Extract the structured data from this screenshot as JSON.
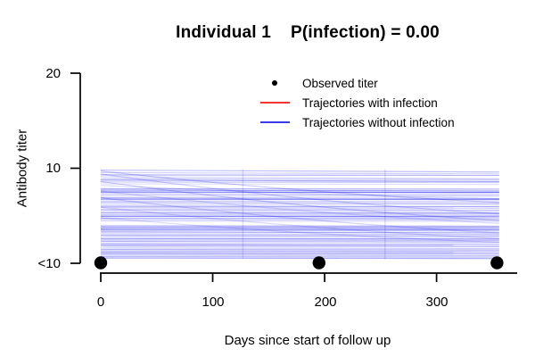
{
  "title": "Individual 1    P(infection) = 0.00",
  "legend": {
    "items": [
      {
        "label": "Observed titer",
        "marker": "point",
        "color": "#000000"
      },
      {
        "label": "Trajectories with infection",
        "marker": "line",
        "color": "#F8342E"
      },
      {
        "label": "Trajectories without infection",
        "marker": "line",
        "color": "#3A3AE8"
      }
    ]
  },
  "chart_data": {
    "type": "line",
    "title": "Individual 1    P(infection) = 0.00",
    "individual": 1,
    "p_infection": "0.00",
    "xlabel": "Days since start of follow up",
    "ylabel": "Antibody titer",
    "x_ticks": [
      {
        "value": 0,
        "label": "0"
      },
      {
        "value": 100,
        "label": "100"
      },
      {
        "value": 200,
        "label": "200"
      },
      {
        "value": 300,
        "label": "300"
      }
    ],
    "y_ticks": [
      {
        "value": 0,
        "label": "<10"
      },
      {
        "value": 10,
        "label": "10"
      },
      {
        "value": 20,
        "label": "20"
      }
    ],
    "xlim": [
      0,
      372
    ],
    "ylim": [
      0,
      20
    ],
    "grid": false,
    "legend_position": "top-right-inside",
    "axis_color": "#000000",
    "observed_points": {
      "x": [
        0,
        195,
        354
      ],
      "y": [
        0,
        0,
        0
      ],
      "y_label": "<10",
      "color": "#000000"
    },
    "trajectories_with_infection": {
      "color": "#FF0000",
      "count": 0,
      "lines": []
    },
    "trajectories_without_infection": {
      "color": "#0000EE",
      "x_start": 0,
      "x_end": 356,
      "jump_days": [
        127,
        254
      ],
      "jump_opacity": 0.13,
      "lines": [
        [
          9.8,
          9.6,
          0.25
        ],
        [
          9.55,
          9.4,
          0.18
        ],
        [
          9.3,
          9.25,
          0.3
        ],
        [
          9.1,
          8.9,
          0.15
        ],
        [
          8.9,
          8.8,
          0.22
        ],
        [
          8.75,
          8.6,
          0.35
        ],
        [
          8.55,
          8.5,
          0.2
        ],
        [
          8.35,
          8.3,
          0.12
        ],
        [
          7.85,
          7.8,
          0.3
        ],
        [
          7.7,
          7.6,
          0.4
        ],
        [
          7.5,
          7.45,
          0.55
        ],
        [
          7.3,
          7.2,
          0.25
        ],
        [
          7.1,
          7.05,
          0.18
        ],
        [
          6.9,
          6.8,
          0.3
        ],
        [
          6.75,
          6.7,
          0.45
        ],
        [
          6.55,
          6.5,
          0.2
        ],
        [
          6.4,
          6.3,
          0.28
        ],
        [
          6.2,
          6.15,
          0.15
        ],
        [
          6.0,
          5.95,
          0.35
        ],
        [
          5.85,
          5.8,
          0.22
        ],
        [
          5.65,
          5.6,
          0.3
        ],
        [
          5.5,
          5.4,
          0.18
        ],
        [
          5.3,
          5.25,
          0.4
        ],
        [
          5.1,
          5.05,
          0.25
        ],
        [
          4.95,
          4.9,
          0.5
        ],
        [
          4.75,
          4.7,
          0.3
        ],
        [
          4.6,
          4.55,
          0.2
        ],
        [
          4.45,
          4.4,
          0.15
        ],
        [
          3.95,
          3.9,
          0.3
        ],
        [
          3.8,
          3.75,
          0.45
        ],
        [
          3.6,
          3.55,
          0.55
        ],
        [
          3.45,
          3.4,
          0.25
        ],
        [
          3.3,
          3.2,
          0.35
        ],
        [
          3.1,
          3.05,
          0.2
        ],
        [
          2.95,
          2.9,
          0.3
        ],
        [
          2.8,
          2.75,
          0.18
        ],
        [
          2.6,
          2.55,
          0.4
        ],
        [
          2.45,
          2.4,
          0.25
        ],
        [
          2.3,
          2.25,
          0.3
        ],
        [
          2.1,
          2.05,
          0.22
        ],
        [
          1.95,
          1.9,
          0.35
        ],
        [
          1.8,
          1.75,
          0.28
        ],
        [
          1.6,
          1.55,
          0.2
        ],
        [
          1.45,
          1.4,
          0.3
        ],
        [
          1.3,
          1.25,
          0.25
        ],
        [
          1.15,
          1.1,
          0.35
        ],
        [
          1.0,
          0.95,
          0.3
        ],
        [
          0.85,
          0.8,
          0.22
        ],
        [
          0.7,
          0.65,
          0.28
        ],
        [
          0.55,
          0.5,
          0.32
        ],
        [
          9.7,
          6.4,
          0.22
        ],
        [
          9.4,
          5.2,
          0.18
        ],
        [
          8.6,
          4.5,
          0.2
        ],
        [
          7.6,
          4.2,
          0.15
        ],
        [
          6.9,
          3.2,
          0.18
        ],
        [
          5.9,
          2.6,
          0.15
        ],
        [
          4.8,
          2.2,
          0.15
        ],
        [
          8.2,
          6.8,
          0.15
        ]
      ]
    }
  }
}
